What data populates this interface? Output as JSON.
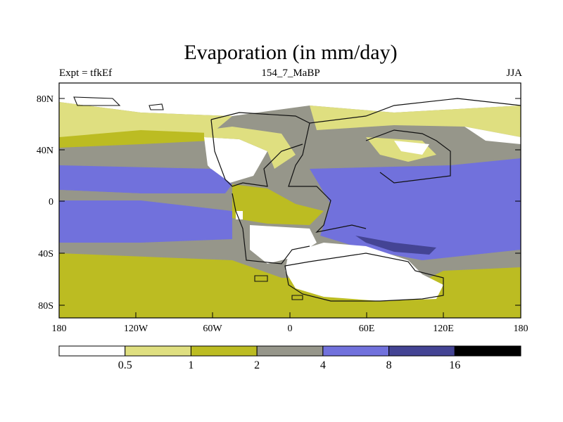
{
  "title": "Evaporation (in mm/day)",
  "subtitle_left": "Expt = tfkEf",
  "subtitle_center": "154_7_MaBP",
  "subtitle_right": "JJA",
  "lat_ticks": [
    "80N",
    "40N",
    "0",
    "40S",
    "80S"
  ],
  "lon_ticks": [
    "180",
    "120W",
    "60W",
    "0",
    "60E",
    "120E",
    "180"
  ],
  "legend": {
    "labels": [
      "0.5",
      "1",
      "2",
      "4",
      "8",
      "16"
    ],
    "colors": [
      "#ffffff",
      "#dfdf80",
      "#bcbc22",
      "#96968a",
      "#7171dc",
      "#444494",
      "#000000"
    ]
  }
}
